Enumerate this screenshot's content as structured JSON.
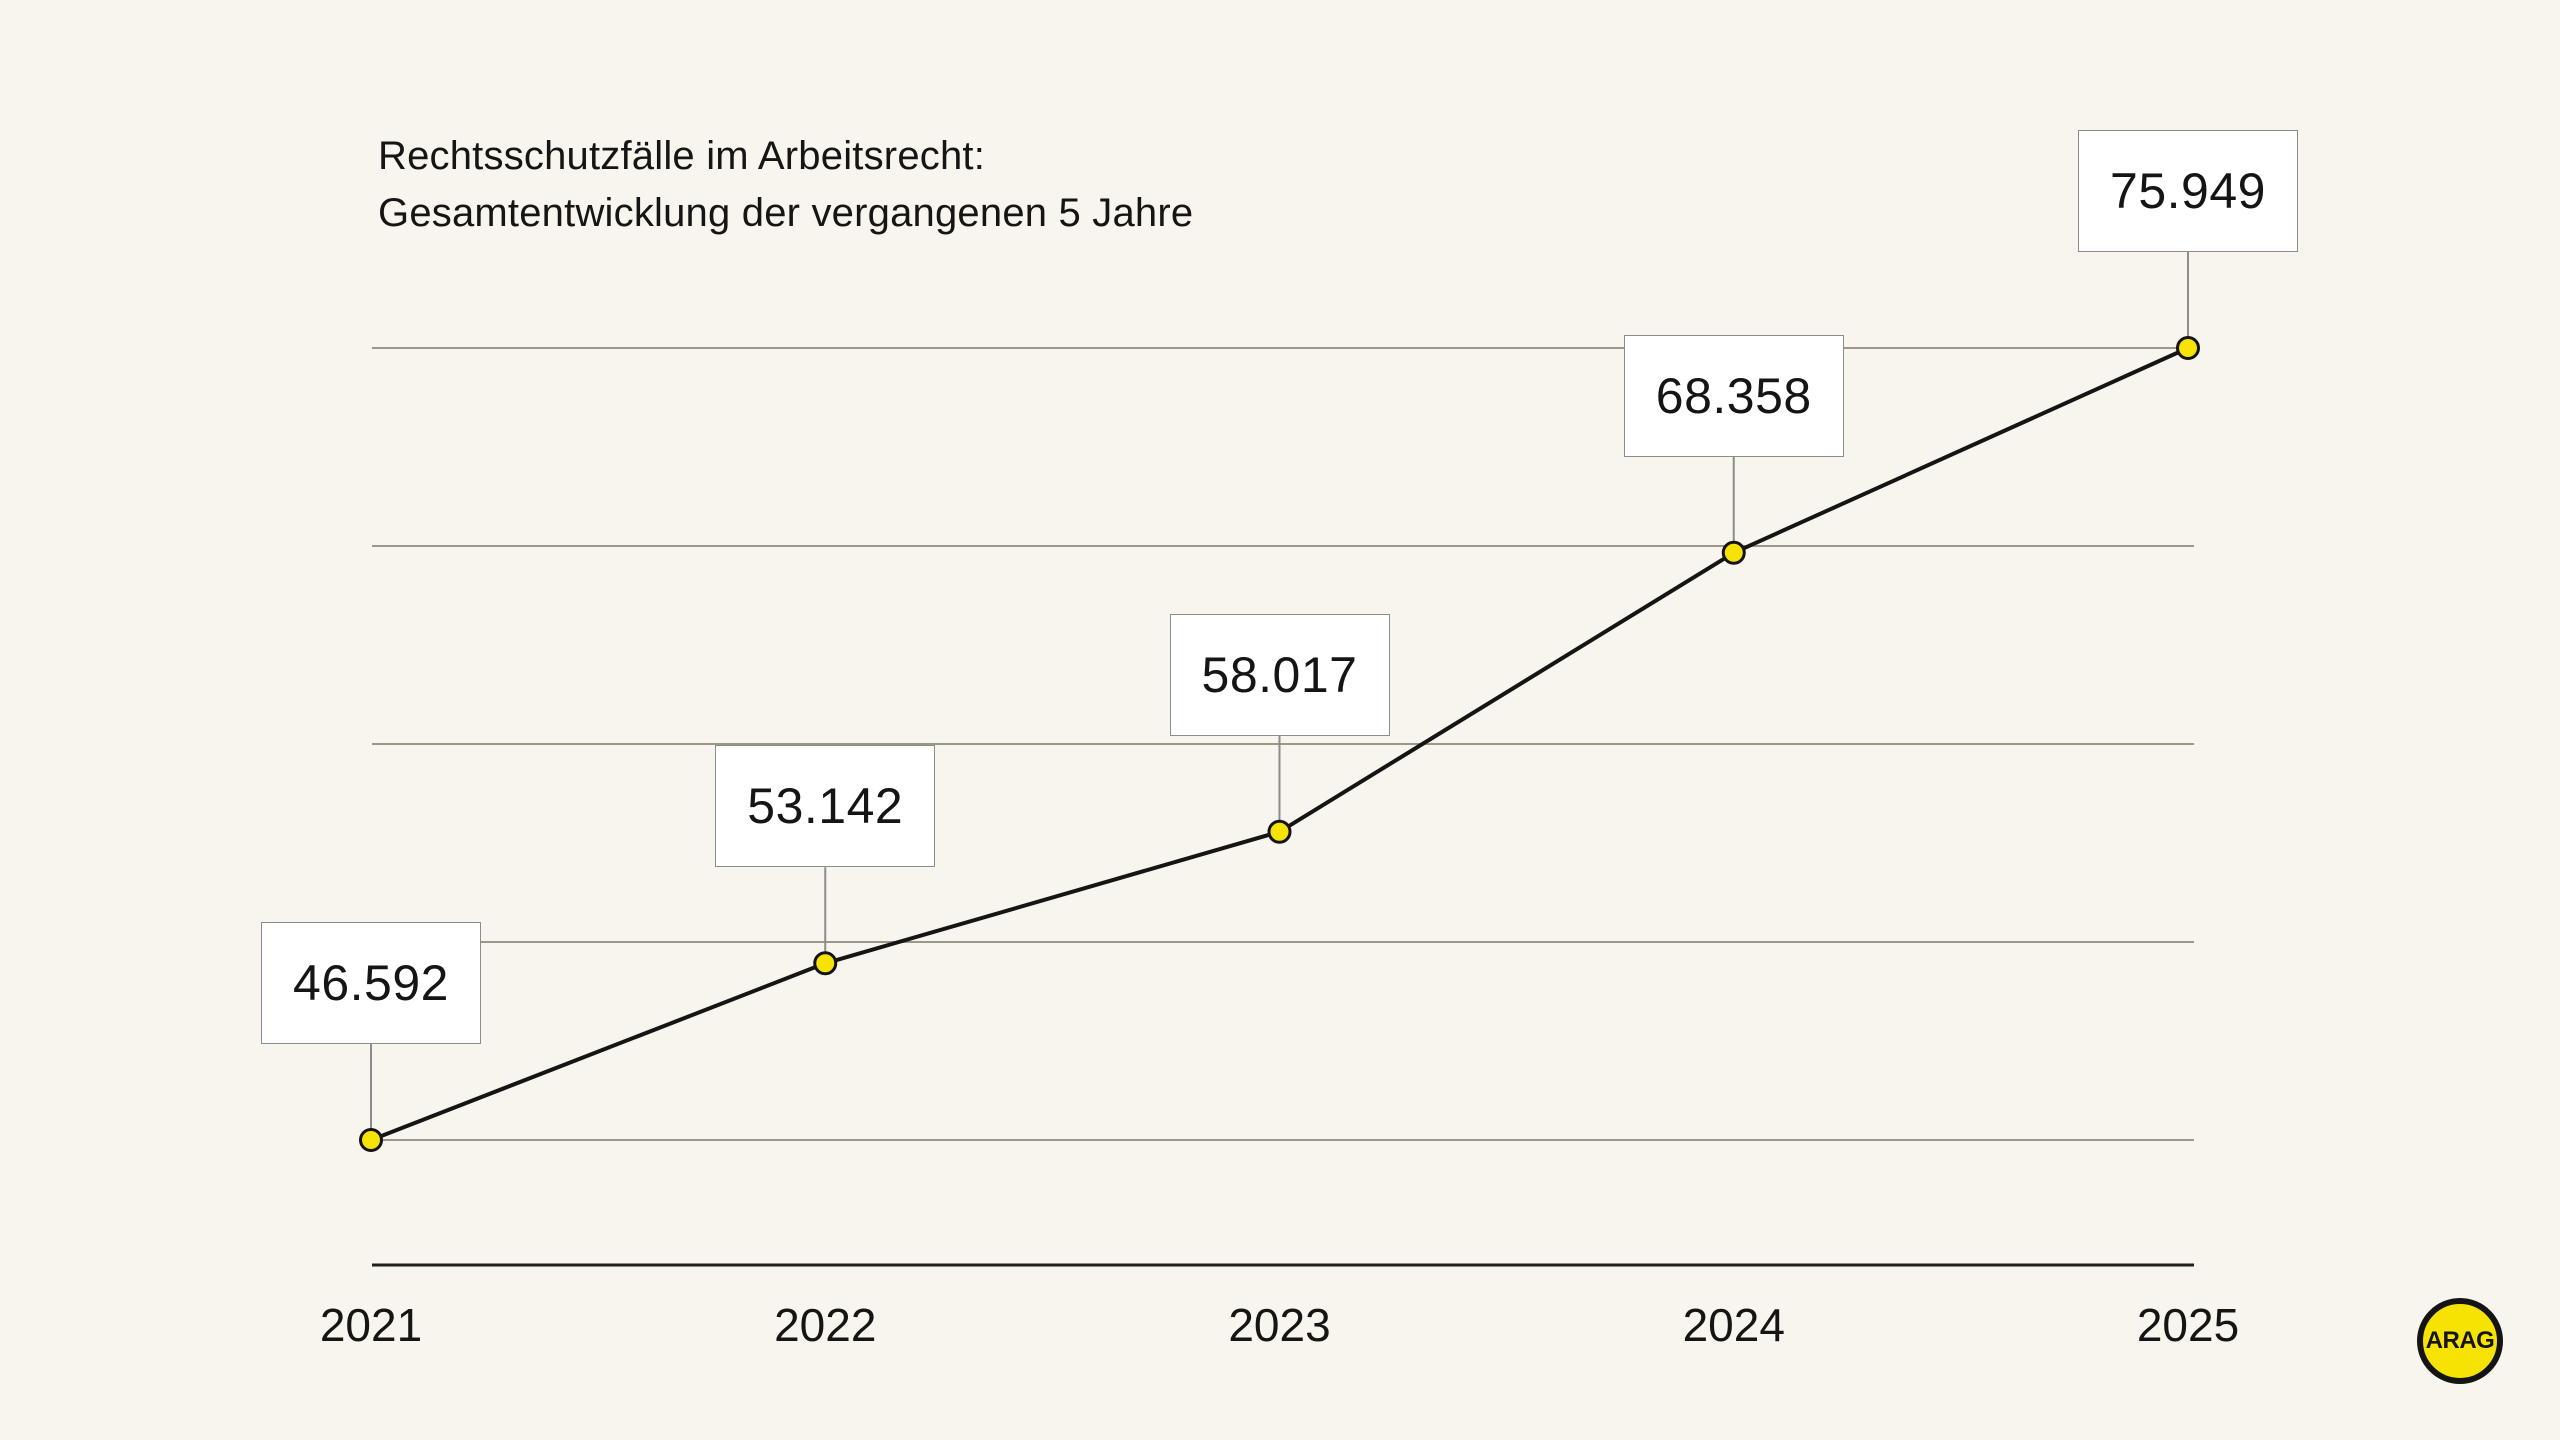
{
  "title": {
    "line1": "Rechtsschutzfälle im Arbeitsrecht:",
    "line2": "Gesamtentwicklung der vergangenen 5 Jahre"
  },
  "logo": {
    "text": "ARAG"
  },
  "colors": {
    "background": "#F8F5EE",
    "text": "#161513",
    "gridline": "#9D978A",
    "axis": "#20201E",
    "series_line": "#161513",
    "marker_fill": "#F6E203",
    "marker_stroke": "#141414",
    "label_box_bg": "#FFFFFF",
    "label_box_border": "#8C8C8C",
    "connector": "#8C8C8C",
    "logo_fill": "#F6E203",
    "logo_ring": "#141414"
  },
  "chart_data": {
    "type": "line",
    "title": "Rechtsschutzfälle im Arbeitsrecht: Gesamtentwicklung der vergangenen 5 Jahre",
    "categories": [
      "2021",
      "2022",
      "2023",
      "2024",
      "2025"
    ],
    "values": [
      46592,
      53142,
      58017,
      68358,
      75949
    ],
    "value_labels": [
      "46.592",
      "53.142",
      "58.017",
      "68.358",
      "75.949"
    ],
    "series_name": "Rechtsschutzfälle",
    "xlabel": "",
    "ylabel": "",
    "ylim": [
      46592,
      75949
    ],
    "grid": "horizontal",
    "gridline_count": 5,
    "legend": "none",
    "marker": "circle-yellow",
    "label_style": "boxed-above-points"
  }
}
